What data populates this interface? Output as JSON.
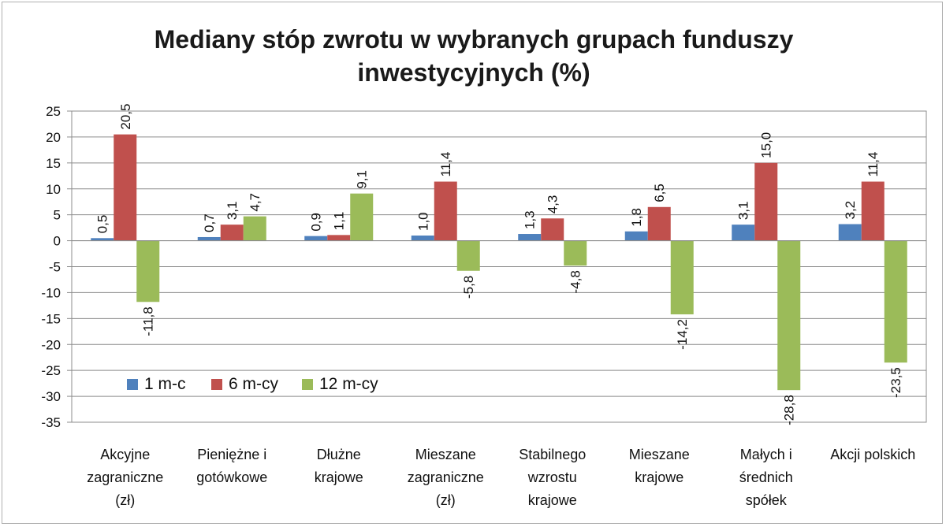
{
  "chart_data": {
    "type": "bar",
    "title_lines": [
      "Mediany stóp zwrotu w wybranych grupach funduszy",
      "inwestycyjnych (%)"
    ],
    "categories": [
      [
        "Akcyjne",
        "zagraniczne",
        "(zł)"
      ],
      [
        "Pieniężne i",
        "gotówkowe"
      ],
      [
        "Dłużne",
        "krajowe"
      ],
      [
        "Mieszane",
        "zagraniczne",
        "(zł)"
      ],
      [
        "Stabilnego",
        "wzrostu",
        "krajowe"
      ],
      [
        "Mieszane",
        "krajowe"
      ],
      [
        "Małych i",
        "średnich",
        "spółek"
      ],
      [
        "Akcji polskich"
      ]
    ],
    "series": [
      {
        "name": "1 m-c",
        "color": "#4f81bd",
        "values": [
          0.5,
          0.7,
          0.9,
          1.0,
          1.3,
          1.8,
          3.1,
          3.2
        ],
        "labels": [
          "0,5",
          "0,7",
          "0,9",
          "1,0",
          "1,3",
          "1,8",
          "3,1",
          "3,2"
        ]
      },
      {
        "name": "6 m-cy",
        "color": "#c0504d",
        "values": [
          20.5,
          3.1,
          1.1,
          11.4,
          4.3,
          6.5,
          15.0,
          11.4
        ],
        "labels": [
          "20,5",
          "3,1",
          "1,1",
          "11,4",
          "4,3",
          "6,5",
          "15,0",
          "11,4"
        ]
      },
      {
        "name": "12 m-cy",
        "color": "#9bbb59",
        "values": [
          -11.8,
          4.7,
          9.1,
          -5.8,
          -4.8,
          -14.2,
          -28.8,
          -23.5
        ],
        "labels": [
          "-11,8",
          "4,7",
          "9,1",
          "-5,8",
          "-4,8",
          "-14,2",
          "-28,8",
          "-23,5"
        ]
      }
    ],
    "ylim": [
      -35,
      25
    ],
    "yticks": [
      25,
      20,
      15,
      10,
      5,
      0,
      -5,
      -10,
      -15,
      -20,
      -25,
      -30,
      -35
    ],
    "ytick_labels": [
      "25",
      "20",
      "15",
      "10",
      "5",
      "0",
      "-5",
      "-10",
      "-15",
      "-20",
      "-25",
      "-30",
      "-35"
    ],
    "grid": true,
    "legend_position": "inside-bottom-left",
    "data_label_orientation": "vertical"
  }
}
